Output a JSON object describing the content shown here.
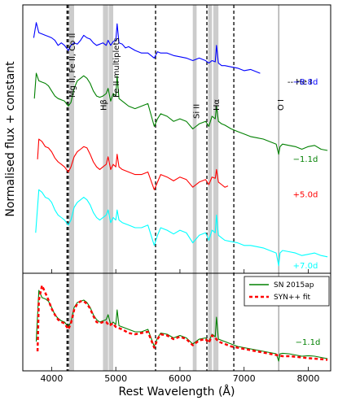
{
  "chart_data": {
    "type": "line",
    "xlabel": "Rest Wavelength (Å)",
    "ylabel": "Normalised flux + constant",
    "xlim": [
      3550,
      8350
    ],
    "x_ticks": [
      "4000",
      "5000",
      "6000",
      "7000",
      "8000"
    ],
    "x_tick_values": [
      4000,
      5000,
      6000,
      7000,
      8000
    ],
    "annotations": [
      {
        "text": "Mg II, Fe II, Co II",
        "x": 4310
      },
      {
        "text": "Hβ",
        "x": 4800
      },
      {
        "text": "Fe II multiplets",
        "x": 5000
      },
      {
        "text": "Si II",
        "x": 6250
      },
      {
        "text": "Hα",
        "x": 6560
      },
      {
        "text": "O I",
        "x": 7560
      },
      {
        "text": "-- He I",
        "x": 7950
      }
    ],
    "dashed_lines": [
      4240,
      4260,
      5620,
      6420,
      6840
    ],
    "grey_line": 7540,
    "grey_bands": [
      [
        4270,
        4350
      ],
      [
        4800,
        4880
      ],
      [
        4890,
        4960
      ],
      [
        6200,
        6260
      ],
      [
        6440,
        6500
      ],
      [
        6520,
        6600
      ]
    ],
    "top_panel": {
      "series": [
        {
          "label": "−8.8d",
          "color": "#0000ff",
          "x": [
            3720,
            3760,
            3800,
            3850,
            3900,
            3950,
            4000,
            4050,
            4100,
            4150,
            4200,
            4260,
            4300,
            4350,
            4400,
            4450,
            4500,
            4550,
            4600,
            4650,
            4700,
            4750,
            4800,
            4850,
            4880,
            4920,
            4960,
            5000,
            5020,
            5050,
            5100,
            5150,
            5200,
            5300,
            5400,
            5500,
            5600,
            5650,
            5700,
            5800,
            5900,
            6000,
            6100,
            6200,
            6300,
            6400,
            6450,
            6500,
            6550,
            6570,
            6600,
            6650,
            6700,
            6800,
            6900,
            7000,
            7100,
            7200,
            7250
          ],
          "y": [
            9.3,
            9.9,
            9.5,
            9.45,
            9.4,
            9.35,
            9.3,
            9.2,
            9.0,
            9.1,
            9.0,
            8.8,
            9.0,
            9.1,
            9.05,
            9.2,
            9.4,
            9.3,
            9.25,
            9.1,
            9.0,
            9.05,
            9.1,
            9.0,
            9.2,
            9.0,
            9.15,
            9.2,
            9.85,
            9.1,
            9.05,
            8.9,
            8.95,
            8.8,
            8.7,
            8.7,
            8.5,
            8.75,
            8.7,
            8.7,
            8.6,
            8.55,
            8.5,
            8.4,
            8.5,
            8.4,
            8.3,
            8.4,
            8.35,
            9.0,
            8.3,
            8.2,
            8.2,
            8.15,
            8.1,
            8.0,
            8.05,
            7.95,
            7.9
          ]
        },
        {
          "label": "−1.1d",
          "color": "#008000",
          "x": [
            3730,
            3760,
            3800,
            3850,
            3900,
            3950,
            4000,
            4050,
            4100,
            4150,
            4200,
            4260,
            4300,
            4350,
            4400,
            4450,
            4500,
            4550,
            4600,
            4650,
            4700,
            4750,
            4800,
            4850,
            4880,
            4920,
            4960,
            5000,
            5020,
            5050,
            5100,
            5200,
            5300,
            5400,
            5500,
            5600,
            5650,
            5700,
            5800,
            5900,
            6000,
            6100,
            6200,
            6300,
            6400,
            6450,
            6500,
            6550,
            6570,
            6600,
            6650,
            6700,
            6800,
            6900,
            7000,
            7100,
            7200,
            7300,
            7400,
            7500,
            7540,
            7560,
            7600,
            7700,
            7800,
            7900,
            8000,
            8100,
            8200,
            8300
          ],
          "y": [
            6.9,
            7.9,
            7.6,
            7.55,
            7.5,
            7.4,
            7.2,
            7.0,
            6.9,
            6.85,
            6.8,
            6.6,
            6.75,
            7.3,
            7.6,
            7.7,
            7.8,
            7.7,
            7.5,
            7.2,
            7.0,
            6.95,
            7.0,
            7.1,
            7.3,
            6.8,
            7.1,
            7.0,
            7.8,
            6.9,
            6.8,
            6.6,
            6.5,
            6.6,
            6.7,
            5.8,
            6.1,
            6.3,
            6.2,
            6.0,
            6.1,
            6.0,
            5.7,
            5.9,
            6.0,
            5.8,
            6.2,
            6.1,
            6.6,
            6.0,
            5.9,
            5.85,
            5.7,
            5.6,
            5.5,
            5.4,
            5.35,
            5.3,
            5.2,
            5.1,
            4.7,
            5.0,
            5.1,
            5.05,
            5.0,
            4.9,
            5.0,
            5.05,
            4.9,
            4.85
          ]
        },
        {
          "label": "+5.0d",
          "color": "#ff0000",
          "x": [
            3780,
            3800,
            3850,
            3900,
            3950,
            4000,
            4050,
            4100,
            4150,
            4200,
            4260,
            4300,
            4350,
            4400,
            4450,
            4500,
            4550,
            4600,
            4650,
            4700,
            4750,
            4800,
            4850,
            4880,
            4920,
            4960,
            5000,
            5020,
            5050,
            5100,
            5200,
            5300,
            5400,
            5500,
            5600,
            5650,
            5700,
            5800,
            5900,
            6000,
            6100,
            6200,
            6300,
            6400,
            6450,
            6500,
            6550,
            6570,
            6600,
            6650,
            6700,
            6750
          ],
          "y": [
            4.5,
            5.3,
            5.2,
            5.0,
            4.95,
            4.8,
            4.55,
            4.4,
            4.3,
            4.2,
            4.0,
            4.2,
            4.6,
            4.8,
            4.9,
            5.0,
            4.95,
            4.7,
            4.4,
            4.2,
            4.1,
            4.2,
            4.3,
            4.6,
            4.1,
            4.3,
            4.2,
            4.7,
            4.2,
            4.1,
            4.0,
            3.9,
            3.9,
            4.0,
            3.3,
            3.6,
            3.9,
            3.8,
            3.65,
            3.8,
            3.7,
            3.4,
            3.6,
            3.7,
            3.5,
            3.8,
            3.75,
            4.1,
            3.6,
            3.5,
            3.4,
            3.45
          ]
        },
        {
          "label": "+7.0d",
          "color": "#00ffff",
          "x": [
            3750,
            3800,
            3850,
            3900,
            3950,
            4000,
            4050,
            4100,
            4150,
            4200,
            4260,
            4300,
            4350,
            4400,
            4450,
            4500,
            4550,
            4600,
            4650,
            4700,
            4750,
            4800,
            4850,
            4880,
            4920,
            4960,
            5000,
            5020,
            5050,
            5100,
            5200,
            5300,
            5400,
            5500,
            5600,
            5650,
            5700,
            5800,
            5900,
            6000,
            6100,
            6200,
            6300,
            6400,
            6450,
            6500,
            6550,
            6570,
            6600,
            6650,
            6700,
            6800,
            6900,
            7000,
            7100,
            7200,
            7300,
            7400,
            7500,
            7540,
            7560,
            7600,
            7700,
            7800,
            7900,
            8000,
            8100,
            8200,
            8300
          ],
          "y": [
            1.6,
            3.3,
            3.2,
            3.0,
            2.95,
            2.8,
            2.5,
            2.3,
            2.2,
            2.1,
            1.9,
            2.1,
            2.6,
            2.8,
            2.9,
            3.0,
            2.9,
            2.7,
            2.4,
            2.2,
            2.1,
            2.2,
            2.3,
            2.5,
            2.0,
            2.2,
            2.1,
            2.5,
            2.1,
            2.0,
            1.9,
            1.8,
            1.8,
            1.9,
            1.1,
            1.5,
            1.8,
            1.7,
            1.55,
            1.7,
            1.6,
            1.2,
            1.5,
            1.6,
            1.3,
            1.7,
            1.6,
            2.3,
            1.5,
            1.4,
            1.3,
            1.25,
            1.2,
            1.1,
            1.1,
            1.05,
            1.0,
            0.9,
            0.8,
            0.3,
            0.8,
            0.9,
            0.85,
            0.8,
            0.7,
            0.75,
            0.8,
            0.7,
            0.65
          ]
        }
      ]
    },
    "bottom_panel": {
      "legend": [
        "SN 2015ap",
        "SYN++ fit"
      ],
      "epoch_label": "−1.1d",
      "series": [
        {
          "name": "SN 2015ap",
          "color": "#008000",
          "style": "solid",
          "x": [
            3760,
            3800,
            3850,
            3900,
            3950,
            4000,
            4050,
            4100,
            4150,
            4200,
            4260,
            4300,
            4350,
            4400,
            4450,
            4500,
            4550,
            4600,
            4650,
            4700,
            4750,
            4800,
            4850,
            4880,
            4920,
            4960,
            5000,
            5020,
            5050,
            5100,
            5200,
            5300,
            5400,
            5500,
            5600,
            5650,
            5700,
            5800,
            5900,
            6000,
            6100,
            6200,
            6300,
            6400,
            6450,
            6500,
            6550,
            6570,
            6600,
            6650,
            6700,
            6800,
            6900,
            7000,
            7100,
            7200,
            7300,
            7400,
            7500,
            7540,
            7560,
            7600,
            7700,
            7800,
            7900,
            8000,
            8100,
            8200,
            8300
          ],
          "y": [
            1.2,
            3.3,
            3.0,
            2.95,
            2.85,
            2.6,
            2.3,
            2.15,
            2.05,
            2.0,
            1.8,
            2.0,
            2.6,
            2.8,
            2.85,
            2.9,
            2.8,
            2.6,
            2.3,
            2.1,
            2.0,
            2.05,
            2.1,
            2.3,
            1.9,
            2.0,
            1.9,
            2.5,
            1.85,
            1.8,
            1.7,
            1.6,
            1.6,
            1.7,
            1.0,
            1.35,
            1.55,
            1.5,
            1.35,
            1.45,
            1.35,
            1.1,
            1.3,
            1.35,
            1.2,
            1.5,
            1.4,
            2.2,
            1.3,
            1.25,
            1.2,
            1.1,
            1.0,
            0.95,
            0.9,
            0.85,
            0.8,
            0.75,
            0.7,
            0.4,
            0.7,
            0.72,
            0.7,
            0.65,
            0.6,
            0.62,
            0.6,
            0.55,
            0.5
          ]
        },
        {
          "name": "SYN++ fit",
          "color": "#ff0000",
          "style": "dashed",
          "x": [
            3780,
            3800,
            3850,
            3900,
            3950,
            4000,
            4050,
            4100,
            4150,
            4200,
            4260,
            4300,
            4350,
            4400,
            4450,
            4500,
            4550,
            4600,
            4650,
            4700,
            4750,
            4800,
            4850,
            4900,
            4950,
            5000,
            5100,
            5200,
            5300,
            5400,
            5500,
            5600,
            5650,
            5700,
            5800,
            5900,
            6000,
            6100,
            6200,
            6300,
            6400,
            6450,
            6500,
            6550,
            6600,
            6650,
            6700,
            6800,
            6900,
            7000,
            7100,
            7200,
            7300,
            7400,
            7500,
            7600,
            7700,
            7800,
            7900,
            8000,
            8100,
            8200,
            8300
          ],
          "y": [
            0.8,
            2.9,
            3.5,
            3.2,
            2.9,
            2.55,
            2.3,
            2.1,
            2.0,
            1.95,
            1.7,
            1.95,
            2.5,
            2.75,
            2.85,
            2.85,
            2.75,
            2.55,
            2.25,
            2.0,
            1.95,
            2.0,
            2.0,
            1.85,
            1.95,
            1.8,
            1.7,
            1.55,
            1.5,
            1.55,
            1.6,
            0.95,
            1.3,
            1.5,
            1.45,
            1.3,
            1.4,
            1.3,
            1.05,
            1.25,
            1.3,
            1.15,
            1.45,
            1.35,
            1.2,
            1.15,
            1.1,
            1.0,
            0.95,
            0.9,
            0.85,
            0.8,
            0.75,
            0.7,
            0.65,
            0.6,
            0.6,
            0.58,
            0.55,
            0.52,
            0.5,
            0.48,
            0.45
          ]
        }
      ]
    }
  }
}
